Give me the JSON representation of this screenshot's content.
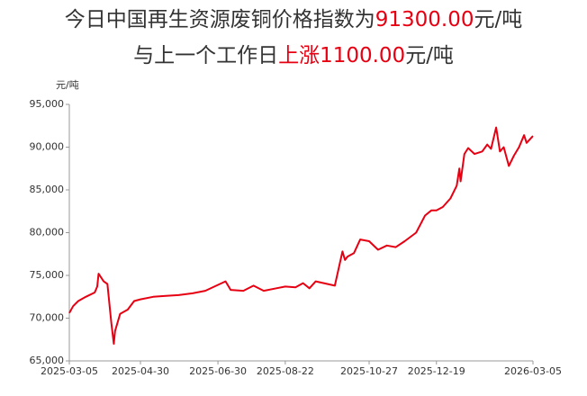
{
  "chart_data": {
    "type": "line",
    "title_lines": [
      [
        {
          "text": "今日中国再生资源废铜价格指数为",
          "color": "#333333"
        },
        {
          "text": "91300.00",
          "color": "#e60012"
        },
        {
          "text": "元/吨",
          "color": "#333333"
        }
      ],
      [
        {
          "text": "与上一个工作日",
          "color": "#333333"
        },
        {
          "text": "上涨1100.00",
          "color": "#e60012"
        },
        {
          "text": "元/吨",
          "color": "#333333"
        }
      ]
    ],
    "y_unit": "元/吨",
    "color": "#e60012",
    "grid": false,
    "xlim": [
      "2025-03-05",
      "2026-03-05"
    ],
    "xticks": [
      "2025-03-05",
      "2025-04-30",
      "2025-06-30",
      "2025-08-22",
      "2025-10-27",
      "2025-12-19",
      "2026-03-05"
    ],
    "ylim": [
      65000,
      95000
    ],
    "yticks": [
      {
        "value": 65000,
        "label": "65,000"
      },
      {
        "value": 70000,
        "label": "70,000"
      },
      {
        "value": 75000,
        "label": "75,000"
      },
      {
        "value": 80000,
        "label": "80,000"
      },
      {
        "value": 85000,
        "label": "85,000"
      },
      {
        "value": 90000,
        "label": "90,000"
      },
      {
        "value": 95000,
        "label": "95,000"
      }
    ],
    "x": [
      "2025-03-05",
      "2025-03-08",
      "2025-03-12",
      "2025-03-18",
      "2025-03-25",
      "2025-03-27",
      "2025-03-28",
      "2025-04-01",
      "2025-04-04",
      "2025-04-07",
      "2025-04-09",
      "2025-04-10",
      "2025-04-14",
      "2025-04-20",
      "2025-04-25",
      "2025-04-30",
      "2025-05-10",
      "2025-05-20",
      "2025-05-30",
      "2025-06-10",
      "2025-06-20",
      "2025-07-06",
      "2025-07-10",
      "2025-07-20",
      "2025-07-28",
      "2025-08-05",
      "2025-08-15",
      "2025-08-22",
      "2025-08-30",
      "2025-09-05",
      "2025-09-10",
      "2025-09-15",
      "2025-09-30",
      "2025-10-06",
      "2025-10-08",
      "2025-10-10",
      "2025-10-15",
      "2025-10-20",
      "2025-10-27",
      "2025-11-03",
      "2025-11-10",
      "2025-11-17",
      "2025-11-24",
      "2025-12-03",
      "2025-12-10",
      "2025-12-15",
      "2025-12-19",
      "2025-12-24",
      "2025-12-30",
      "2026-01-04",
      "2026-01-06",
      "2026-01-07",
      "2026-01-10",
      "2026-01-13",
      "2026-01-18",
      "2026-01-24",
      "2026-01-28",
      "2026-01-31",
      "2026-02-04",
      "2026-02-07",
      "2026-02-10",
      "2026-02-14",
      "2026-02-18",
      "2026-02-22",
      "2026-02-26",
      "2026-02-28",
      "2026-03-05"
    ],
    "values": [
      70600,
      71400,
      72000,
      72500,
      73000,
      73700,
      75200,
      74300,
      74000,
      69500,
      67000,
      68500,
      70500,
      71000,
      72000,
      72200,
      72500,
      72600,
      72700,
      72900,
      73200,
      74300,
      73300,
      73200,
      73800,
      73200,
      73500,
      73700,
      73600,
      74100,
      73500,
      74300,
      73800,
      77800,
      76800,
      77200,
      77600,
      79200,
      79000,
      78000,
      78500,
      78300,
      79000,
      80000,
      82000,
      82600,
      82600,
      83000,
      84000,
      85500,
      87500,
      86000,
      89200,
      89900,
      89200,
      89500,
      90300,
      89800,
      92300,
      89500,
      90000,
      87800,
      89000,
      90000,
      91400,
      90500,
      91300
    ]
  }
}
